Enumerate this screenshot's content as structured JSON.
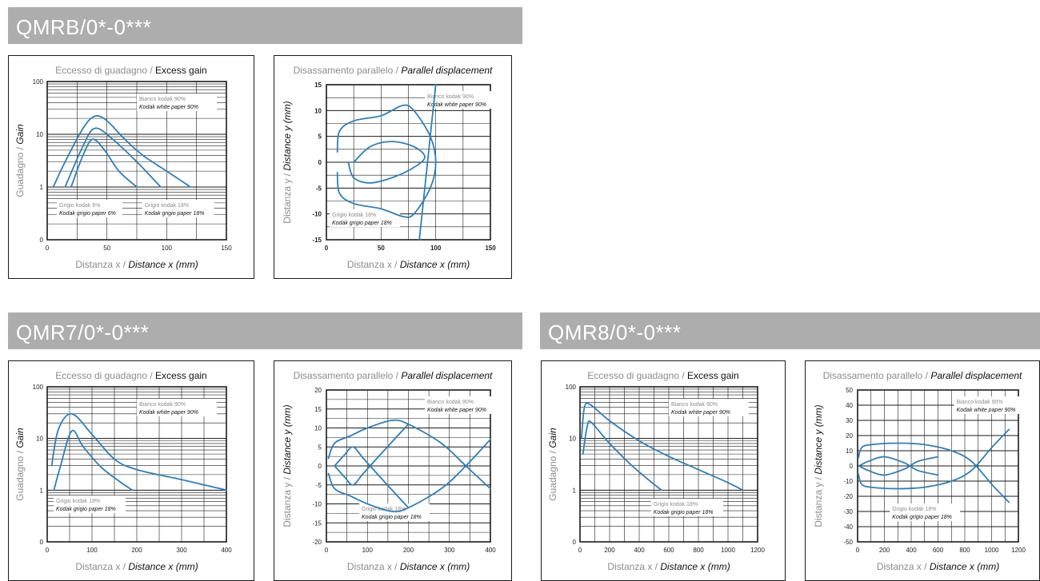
{
  "colors": {
    "banner": "#adadad",
    "curve": "#2e7fb8",
    "grid": "#1a1a1a",
    "label_gray": "#8c8c8c"
  },
  "sections": [
    {
      "title": "QMRB/0*-0***"
    },
    {
      "title": "QMR7/0*-0***"
    },
    {
      "title": "QMR8/0*-0***"
    }
  ],
  "charts": [
    {
      "kind": "gain",
      "title_it": "Eccesso di guadagno",
      "title_sep": " / ",
      "title_en": "Excess gain",
      "xlabel_it": "Distanza x",
      "xlabel_sep": " / ",
      "xlabel_en": "Distance x (mm)",
      "ylabel_it": "Guadagno",
      "ylabel_sep": " / ",
      "ylabel_en": "Gain",
      "x_ticks": [
        "0",
        "50",
        "100",
        "150"
      ],
      "y_ticks": [
        "0",
        "1",
        "10",
        "100"
      ],
      "legend_white_it": "Bianco kodak 90%",
      "legend_white_en": "Kodak white paper 90%",
      "legend_gray1_it": "Grigio kodak 6%",
      "legend_gray1_en": "Kodak grigio paper 6%",
      "legend_gray2_it": "Grigio kodak 18%",
      "legend_gray2_en": "Kodak grigio paper 18%"
    },
    {
      "kind": "disp",
      "title_it": "Disassamento parallelo",
      "title_sep": " / ",
      "title_en": "Parallel displacement",
      "xlabel_it": "Distanza x",
      "xlabel_sep": " / ",
      "xlabel_en": "Distance x (mm)",
      "ylabel_it": "Distanza y",
      "ylabel_sep": " / ",
      "ylabel_en": "Distance y (mm)",
      "x_ticks": [
        "0",
        "50",
        "100",
        "150"
      ],
      "y_ticks": [
        "15",
        "10",
        "5",
        "0",
        "-5",
        "-10",
        "-15"
      ],
      "legend_white_it": "Bianco kodak 90%",
      "legend_white_en": "Kodak white paper 90%",
      "legend_gray_it": "Grigio kodak 18%",
      "legend_gray_en": "Kodak grigio paper 18%"
    },
    {
      "kind": "gain",
      "title_it": "Eccesso di guadagno",
      "title_sep": " / ",
      "title_en": "Excess gain",
      "xlabel_it": "Distanza x",
      "xlabel_sep": " / ",
      "xlabel_en": "Distance x (mm)",
      "ylabel_it": "Guadagno",
      "ylabel_sep": " / ",
      "ylabel_en": "Gain",
      "x_ticks": [
        "0",
        "100",
        "200",
        "300",
        "400"
      ],
      "y_ticks": [
        "0",
        "1",
        "10",
        "100"
      ],
      "legend_white_it": "Bianco kodak 90%",
      "legend_white_en": "Kodak white paper 90%",
      "legend_gray_it": "Grigio kodak 18%",
      "legend_gray_en": "Kodak grigio paper 18%"
    },
    {
      "kind": "disp",
      "title_it": "Disassamento parallelo",
      "title_sep": " / ",
      "title_en": "Parallel displacement",
      "xlabel_it": "Distanza x",
      "xlabel_sep": " / ",
      "xlabel_en": "Distance x (mm)",
      "ylabel_it": "Distanza y",
      "ylabel_sep": " / ",
      "ylabel_en": "Distance y (mm)",
      "x_ticks": [
        "0",
        "100",
        "200",
        "300",
        "400"
      ],
      "y_ticks": [
        "20",
        "15",
        "10",
        "5",
        "0",
        "-5",
        "-10",
        "-15",
        "-20"
      ],
      "legend_white_it": "Bianco kodak 90%",
      "legend_white_en": "Kodak white paper 90%",
      "legend_gray_it": "Grigio kodak 18%",
      "legend_gray_en": "Kodak grigio paper 18%"
    },
    {
      "kind": "gain",
      "title_it": "Eccesso di guadagno",
      "title_sep": " / ",
      "title_en": "Excess gain",
      "xlabel_it": "Distanza x",
      "xlabel_sep": " / ",
      "xlabel_en": "Distance x (mm)",
      "ylabel_it": "Guadagno",
      "ylabel_sep": " / ",
      "ylabel_en": "Gain",
      "x_ticks": [
        "0",
        "200",
        "400",
        "600",
        "800",
        "1000",
        "1200"
      ],
      "y_ticks": [
        "0",
        "1",
        "10",
        "100"
      ],
      "legend_white_it": "Bianco kodak 90%",
      "legend_white_en": "Kodak white paper 90%",
      "legend_gray_it": "Grigio kodak 18%",
      "legend_gray_en": "Kodak grigio paper 18%"
    },
    {
      "kind": "disp",
      "title_it": "Disassamento parallelo",
      "title_sep": " / ",
      "title_en": "Parallel displacement",
      "xlabel_it": "Distanza x",
      "xlabel_sep": " / ",
      "xlabel_en": "Distance x (mm)",
      "ylabel_it": "Distanza y",
      "ylabel_sep": " / ",
      "ylabel_en": "Distance y (mm)",
      "x_ticks": [
        "0",
        "200",
        "400",
        "600",
        "800",
        "1000",
        "1200"
      ],
      "y_ticks": [
        "50",
        "40",
        "30",
        "20",
        "10",
        "0",
        "-10",
        "-20",
        "-30",
        "-40",
        "-50"
      ],
      "legend_white_it": "Bianco kodak 90%",
      "legend_white_en": "Kodak white paper 90%",
      "legend_gray_it": "Grigio kodak 18%",
      "legend_gray_en": "Kodak grigio paper 18%"
    }
  ],
  "chart_data": [
    {
      "type": "line",
      "name": "QMRB/0*-0*** Eccesso di guadagno / Excess gain",
      "y_scale": "log",
      "xlim": [
        0,
        150
      ],
      "ylim": [
        0.1,
        100
      ],
      "series": [
        {
          "name": "Bianco kodak 90%",
          "points": [
            [
              5,
              1
            ],
            [
              15,
              3
            ],
            [
              30,
              13
            ],
            [
              40,
              22
            ],
            [
              50,
              18
            ],
            [
              65,
              8
            ],
            [
              80,
              4
            ],
            [
              100,
              2
            ],
            [
              120,
              1
            ]
          ]
        },
        {
          "name": "Grigio kodak 18%",
          "points": [
            [
              15,
              1
            ],
            [
              30,
              6
            ],
            [
              40,
              13
            ],
            [
              55,
              8
            ],
            [
              75,
              3
            ],
            [
              95,
              1
            ]
          ]
        },
        {
          "name": "Grigio kodak 6%",
          "points": [
            [
              20,
              1
            ],
            [
              30,
              4
            ],
            [
              38,
              8
            ],
            [
              48,
              5
            ],
            [
              60,
              2
            ],
            [
              75,
              1
            ]
          ]
        }
      ]
    },
    {
      "type": "line",
      "name": "QMRB/0*-0*** Disassamento parallelo / Parallel displacement",
      "xlim": [
        0,
        150
      ],
      "ylim": [
        -15,
        15
      ],
      "series": [
        {
          "name": "Bianco kodak 90%",
          "points": [
            [
              10,
              2
            ],
            [
              12,
              6
            ],
            [
              25,
              8
            ],
            [
              50,
              9
            ],
            [
              70,
              11
            ],
            [
              80,
              10
            ],
            [
              95,
              5
            ],
            [
              100,
              0
            ],
            [
              95,
              -5
            ],
            [
              80,
              -10
            ],
            [
              70,
              -10.5
            ],
            [
              50,
              -9
            ],
            [
              25,
              -8
            ],
            [
              12,
              -6
            ],
            [
              10,
              -2
            ]
          ]
        },
        {
          "name": "Grigio kodak 18%",
          "points": [
            [
              20,
              0
            ],
            [
              25,
              -3
            ],
            [
              40,
              -4
            ],
            [
              60,
              -3
            ],
            [
              80,
              -1
            ],
            [
              90,
              1
            ],
            [
              80,
              3
            ],
            [
              60,
              4
            ],
            [
              40,
              3
            ],
            [
              25,
              0
            ]
          ]
        },
        {
          "name": "Bianco kodak 90% (outer)",
          "points": [
            [
              85,
              -15
            ],
            [
              90,
              -5
            ],
            [
              95,
              5
            ],
            [
              100,
              15
            ]
          ]
        }
      ]
    },
    {
      "type": "line",
      "name": "QMR7/0*-0*** Eccesso di guadagno / Excess gain",
      "y_scale": "log",
      "xlim": [
        0,
        400
      ],
      "ylim": [
        0.1,
        100
      ],
      "series": [
        {
          "name": "Bianco kodak 90%",
          "points": [
            [
              10,
              3
            ],
            [
              25,
              15
            ],
            [
              55,
              30
            ],
            [
              100,
              12
            ],
            [
              150,
              4
            ],
            [
              200,
              2.5
            ],
            [
              300,
              1.6
            ],
            [
              400,
              1
            ]
          ]
        },
        {
          "name": "Grigio kodak 18%",
          "points": [
            [
              15,
              1
            ],
            [
              30,
              3
            ],
            [
              55,
              14
            ],
            [
              80,
              7
            ],
            [
              120,
              2.8
            ],
            [
              160,
              1.5
            ],
            [
              190,
              1
            ]
          ]
        }
      ]
    },
    {
      "type": "line",
      "name": "QMR7/0*-0*** Disassamento parallelo / Parallel displacement",
      "xlim": [
        0,
        400
      ],
      "ylim": [
        -20,
        20
      ],
      "series": [
        {
          "name": "Bianco kodak 90%",
          "points": [
            [
              5,
              2
            ],
            [
              20,
              6
            ],
            [
              60,
              8
            ],
            [
              100,
              10
            ],
            [
              160,
              12
            ],
            [
              200,
              11
            ],
            [
              280,
              6
            ],
            [
              340,
              0
            ],
            [
              400,
              -6
            ]
          ]
        },
        {
          "name": "Bianco kodak 90% (mirror)",
          "points": [
            [
              5,
              -2
            ],
            [
              20,
              -6
            ],
            [
              60,
              -8
            ],
            [
              100,
              -10
            ],
            [
              160,
              -12
            ],
            [
              200,
              -11
            ],
            [
              280,
              -6
            ],
            [
              340,
              0
            ],
            [
              400,
              7
            ]
          ]
        },
        {
          "name": "Grigio kodak 18%",
          "points": [
            [
              20,
              0
            ],
            [
              45,
              -3
            ],
            [
              65,
              -5
            ],
            [
              90,
              -2
            ],
            [
              140,
              4
            ],
            [
              200,
              11
            ]
          ]
        },
        {
          "name": "Grigio kodak 18% (mirror)",
          "points": [
            [
              20,
              0
            ],
            [
              45,
              3
            ],
            [
              65,
              5
            ],
            [
              90,
              2
            ],
            [
              140,
              -4
            ],
            [
              200,
              -11
            ]
          ]
        }
      ]
    },
    {
      "type": "line",
      "name": "QMR8/0*-0*** Eccesso di guadagno / Excess gain",
      "y_scale": "log",
      "xlim": [
        0,
        1200
      ],
      "ylim": [
        0.1,
        100
      ],
      "series": [
        {
          "name": "Bianco kodak 90%",
          "points": [
            [
              10,
              10
            ],
            [
              30,
              40
            ],
            [
              70,
              45
            ],
            [
              200,
              22
            ],
            [
              400,
              9
            ],
            [
              600,
              4.5
            ],
            [
              800,
              2.5
            ],
            [
              1000,
              1.4
            ],
            [
              1100,
              1
            ]
          ]
        },
        {
          "name": "Grigio kodak 18%",
          "points": [
            [
              20,
              5
            ],
            [
              50,
              18
            ],
            [
              80,
              20
            ],
            [
              200,
              8
            ],
            [
              350,
              3
            ],
            [
              450,
              1.7
            ],
            [
              550,
              1
            ]
          ]
        }
      ]
    },
    {
      "type": "line",
      "name": "QMR8/0*-0*** Disassamento parallelo / Parallel displacement",
      "xlim": [
        0,
        1200
      ],
      "ylim": [
        -50,
        50
      ],
      "series": [
        {
          "name": "Bianco kodak 90%",
          "points": [
            [
              5,
              5
            ],
            [
              30,
              12
            ],
            [
              100,
              14
            ],
            [
              300,
              15
            ],
            [
              500,
              14
            ],
            [
              700,
              10
            ],
            [
              850,
              3
            ],
            [
              1000,
              -12
            ],
            [
              1130,
              -24
            ]
          ]
        },
        {
          "name": "Bianco kodak 90% (mirror)",
          "points": [
            [
              5,
              -5
            ],
            [
              30,
              -12
            ],
            [
              100,
              -14
            ],
            [
              300,
              -15
            ],
            [
              500,
              -14
            ],
            [
              700,
              -10
            ],
            [
              850,
              -3
            ],
            [
              1000,
              12
            ],
            [
              1130,
              24
            ]
          ]
        },
        {
          "name": "Grigio kodak 18%",
          "points": [
            [
              10,
              0
            ],
            [
              80,
              3
            ],
            [
              200,
              6
            ],
            [
              350,
              2
            ],
            [
              450,
              -3
            ],
            [
              600,
              -6
            ]
          ]
        },
        {
          "name": "Grigio kodak 18% (mirror)",
          "points": [
            [
              10,
              0
            ],
            [
              80,
              -3
            ],
            [
              200,
              -6
            ],
            [
              350,
              -2
            ],
            [
              450,
              3
            ],
            [
              600,
              6
            ]
          ]
        }
      ]
    }
  ]
}
